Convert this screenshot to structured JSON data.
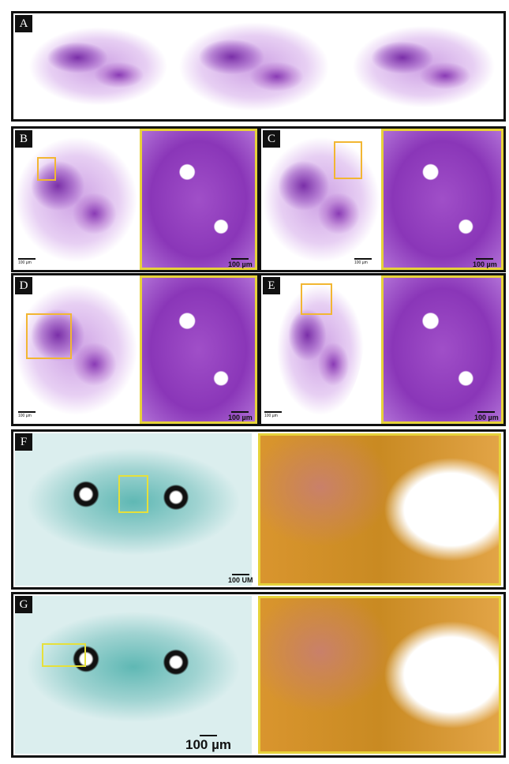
{
  "panels": [
    {
      "label": "A"
    },
    {
      "label": "B",
      "scale_left": "100 µm",
      "scale_right": "100 µm"
    },
    {
      "label": "C",
      "scale_left": "100 µm",
      "scale_right": "100 µm"
    },
    {
      "label": "D",
      "scale_left": "100 µm",
      "scale_right": "100 µm"
    },
    {
      "label": "E",
      "scale_left": "100 µm",
      "scale_right": "100 µm"
    },
    {
      "label": "F",
      "scale_left": "100 UM"
    },
    {
      "label": "G",
      "scale_left": "100 µm"
    }
  ]
}
